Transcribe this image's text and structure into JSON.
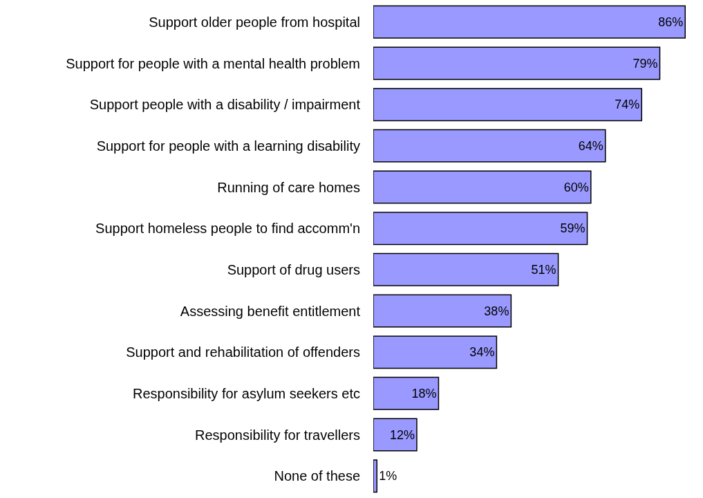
{
  "chart_data": {
    "type": "bar",
    "orientation": "horizontal",
    "categories": [
      "Support older people from hospital",
      "Support for people with a mental health problem",
      "Support people with a disability / impairment",
      "Support for people with a learning disability",
      "Running of care homes",
      "Support homeless people to find accomm'n",
      "Support of drug users",
      "Assessing benefit entitlement",
      "Support and rehabilitation of offenders",
      "Responsibility for asylum seekers etc",
      "Responsibility for travellers",
      "None of these"
    ],
    "values": [
      86,
      79,
      74,
      64,
      60,
      59,
      51,
      38,
      34,
      18,
      12,
      1
    ],
    "value_labels": [
      "86%",
      "79%",
      "74%",
      "64%",
      "60%",
      "59%",
      "51%",
      "38%",
      "34%",
      "18%",
      "12%",
      "1%"
    ],
    "color": "#9999ff"
  }
}
